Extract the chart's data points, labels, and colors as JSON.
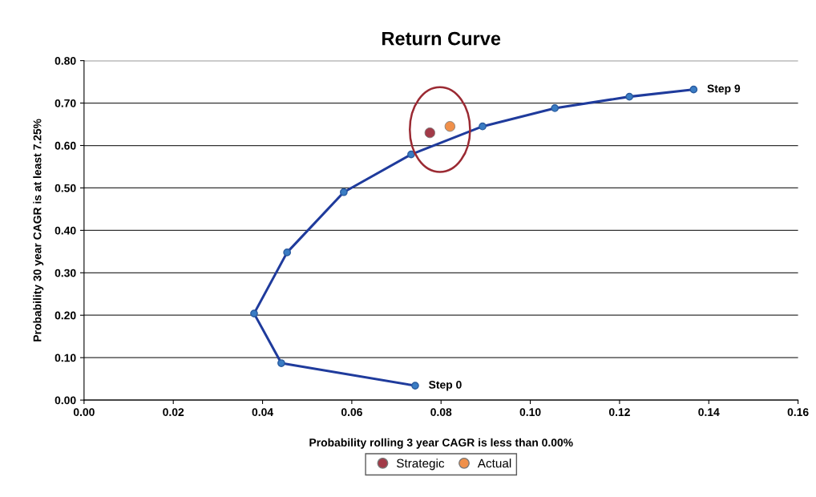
{
  "chart_data": {
    "type": "line",
    "title": "Return Curve",
    "xlabel": "Probability rolling 3 year CAGR is less than 0.00%",
    "ylabel": "Probability 30 year CAGR is at least 7.25%",
    "series": [
      {
        "color": "#1f3b9c",
        "marker": "circle",
        "x": [
          0.0742,
          0.0442,
          0.0381,
          0.0455,
          0.0582,
          0.0733,
          0.0893,
          0.1055,
          0.1222,
          0.1366
        ],
        "values": [
          0.034,
          0.087,
          0.204,
          0.348,
          0.49,
          0.579,
          0.645,
          0.688,
          0.715,
          0.732
        ]
      },
      {
        "type": "scatter",
        "name": "Strategic",
        "color": "#a23a48",
        "marker": "circle",
        "x": [
          0.0775
        ],
        "values": [
          0.63
        ]
      },
      {
        "type": "scatter",
        "name": "Actual",
        "color": "#f0904a",
        "marker": "circle",
        "x": [
          0.082
        ],
        "values": [
          0.645
        ]
      }
    ],
    "annotations": [
      {
        "text": "Step 0",
        "x": 0.0742,
        "y": 0.034
      },
      {
        "text": "Step 9",
        "x": 0.1366,
        "y": 0.732
      }
    ],
    "xlim": [
      0,
      0.16
    ],
    "xticks": [
      {
        "value": 0,
        "label": "0.00"
      },
      {
        "value": 0.02,
        "label": "0.02"
      },
      {
        "value": 0.04,
        "label": "0.04"
      },
      {
        "value": 0.06,
        "label": "0.06"
      },
      {
        "value": 0.08,
        "label": "0.08"
      },
      {
        "value": 0.1,
        "label": "0.10"
      },
      {
        "value": 0.12,
        "label": "0.12"
      },
      {
        "value": 0.14,
        "label": "0.14"
      },
      {
        "value": 0.16,
        "label": "0.16"
      }
    ],
    "ylim": [
      0,
      0.8
    ],
    "yticks": [
      {
        "value": 0,
        "label": "0.00"
      },
      {
        "value": 0.1,
        "label": "0.10"
      },
      {
        "value": 0.2,
        "label": "0.20"
      },
      {
        "value": 0.3,
        "label": "0.30"
      },
      {
        "value": 0.4,
        "label": "0.40"
      },
      {
        "value": 0.5,
        "label": "0.50"
      },
      {
        "value": 0.6,
        "label": "0.60"
      },
      {
        "value": 0.7,
        "label": "0.70"
      },
      {
        "value": 0.8,
        "label": "0.80"
      }
    ],
    "grid": "y",
    "legend": "bottom"
  }
}
